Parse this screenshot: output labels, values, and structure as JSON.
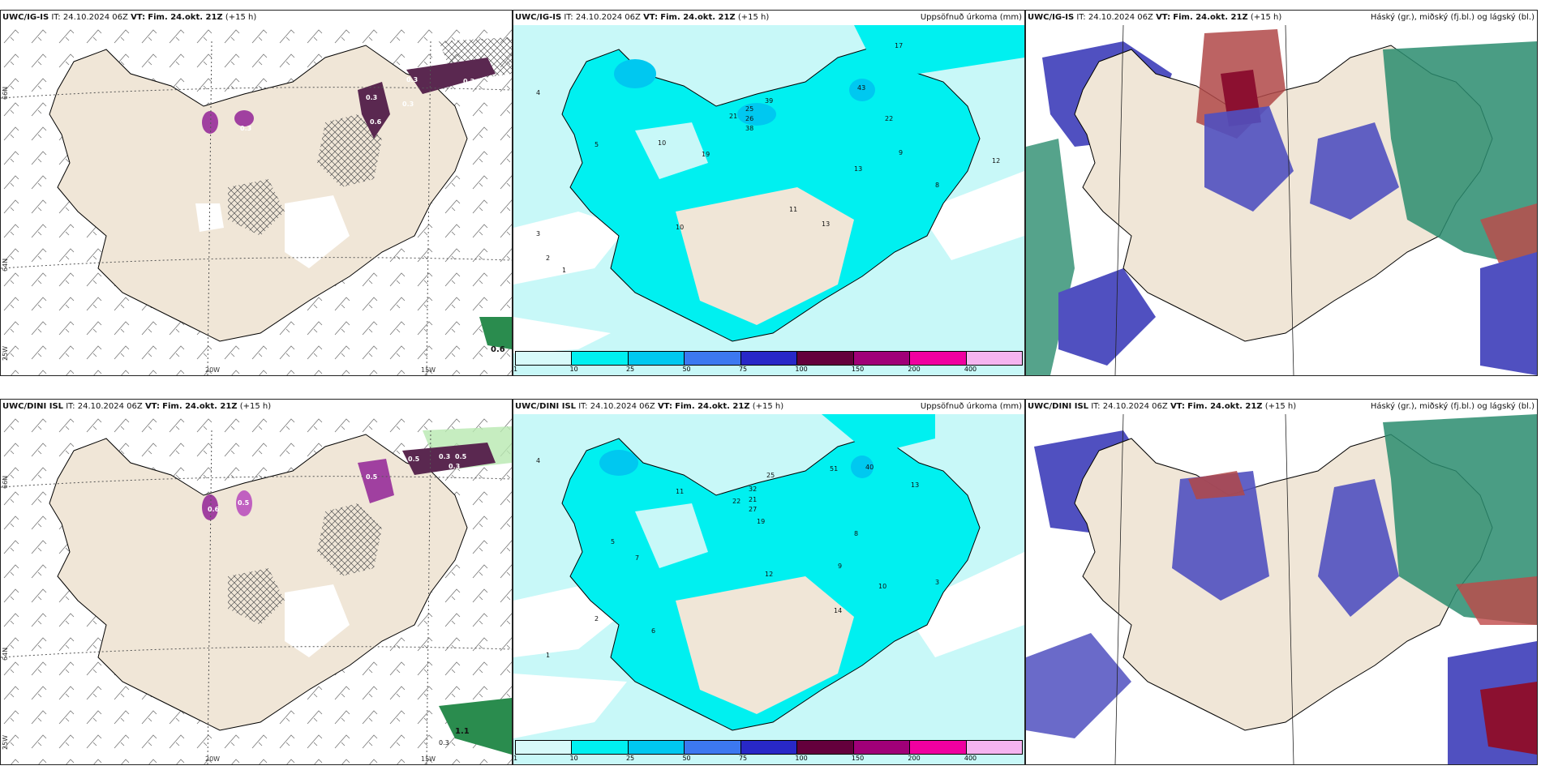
{
  "panels": [
    {
      "model": "UWC/IG-IS",
      "it": "IT: 24.10.2024 06Z",
      "vt_label": "VT:",
      "vt": "Fim. 24.okt. 21Z",
      "lead": "(+15 h)",
      "right": ""
    },
    {
      "model": "UWC/IG-IS",
      "it": "IT: 24.10.2024 06Z",
      "vt_label": "VT:",
      "vt": "Fim. 24.okt. 21Z",
      "lead": "(+15 h)",
      "right": "Uppsöfnuð úrkoma (mm)"
    },
    {
      "model": "UWC/IG-IS",
      "it": "IT: 24.10.2024 06Z",
      "vt_label": "VT:",
      "vt": "Fim. 24.okt. 21Z",
      "lead": "(+15 h)",
      "right": "Háský (gr.), miðský (fj.bl.) og lágský (bl.)"
    },
    {
      "model": "UWC/DINI ISL",
      "it": "IT: 24.10.2024 06Z",
      "vt_label": "VT:",
      "vt": "Fim. 24.okt. 21Z",
      "lead": "(+15 h)",
      "right": ""
    },
    {
      "model": "UWC/DINI ISL",
      "it": "IT: 24.10.2024 06Z",
      "vt_label": "VT:",
      "vt": "Fim. 24.okt. 21Z",
      "lead": "(+15 h)",
      "right": "Uppsöfnuð úrkoma (mm)"
    },
    {
      "model": "UWC/DINI ISL",
      "it": "IT: 24.10.2024 06Z",
      "vt_label": "VT:",
      "vt": "Fim. 24.okt. 21Z",
      "lead": "(+15 h)",
      "right": "Háský (gr.), miðský (fj.bl.) og lágský (bl.)"
    }
  ],
  "grid_labels": {
    "lon_20w": "20W",
    "lon_15w": "15W",
    "lat_66n": "66N",
    "lat_64n": "64N",
    "lat_25w": "25W"
  },
  "precip_scale": {
    "ticks": [
      "1",
      "10",
      "25",
      "50",
      "75",
      "100",
      "150",
      "200",
      "400"
    ],
    "colors": [
      "#d8fafa",
      "#00f0f0",
      "#00c8f0",
      "#3c78f0",
      "#2828c8",
      "#64003c",
      "#a00078",
      "#f000a0",
      "#f5b4f0"
    ]
  },
  "wind_panel_values": {
    "igis": [
      "0.3",
      "0.3",
      "0.6",
      "0.3",
      "0.5",
      "0.3",
      "0.3",
      "0.6"
    ],
    "dini": [
      "0.5",
      "0.5",
      "0.6",
      "0.5",
      "0.3",
      "0.5",
      "0.3",
      "1.1",
      "0.3"
    ]
  },
  "precip_values": {
    "igis": [
      "17",
      "43",
      "39",
      "21",
      "25",
      "26",
      "38",
      "22",
      "12",
      "13",
      "19",
      "10",
      "11",
      "13",
      "10",
      "9",
      "8",
      "5",
      "4",
      "3",
      "2",
      "1"
    ],
    "dini": [
      "40",
      "51",
      "32",
      "25",
      "22",
      "21",
      "27",
      "19",
      "14",
      "13",
      "12",
      "11",
      "10",
      "9",
      "8",
      "7",
      "6",
      "5",
      "4",
      "3",
      "2",
      "1"
    ]
  },
  "colors": {
    "land": "#f0e6d7",
    "sea_precip": "#c8f8f8",
    "low_cloud": "#5050c0",
    "mid_cloud": "#9ab8f0",
    "high_cloud": "#2a8c6e",
    "dark_red": "#8c1030"
  }
}
